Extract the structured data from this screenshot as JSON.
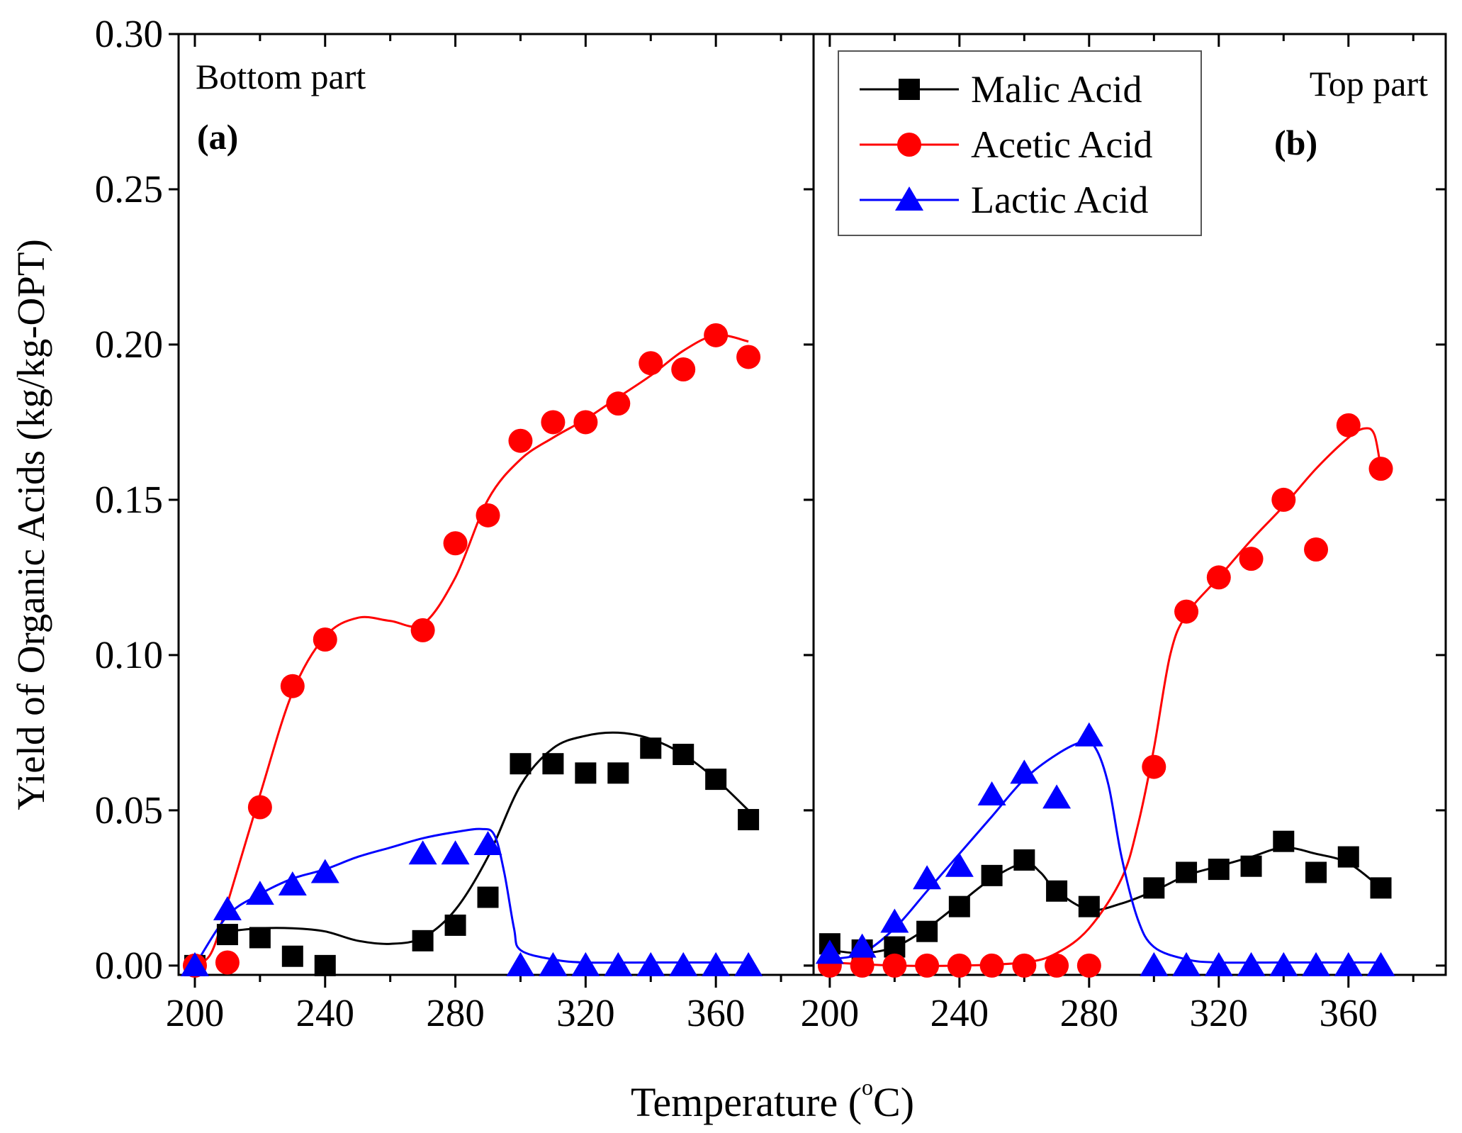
{
  "chart_data": [
    {
      "type": "scatter",
      "panel_name": "Bottom part",
      "panel_tag": "(a)",
      "xlim": [
        195,
        390
      ],
      "ylim": [
        -0.003,
        0.3
      ],
      "x_ticks": [
        "200",
        "240",
        "280",
        "320",
        "360"
      ],
      "y_ticks": [
        "0.00",
        "0.05",
        "0.10",
        "0.15",
        "0.20",
        "0.25",
        "0.30"
      ],
      "series": [
        {
          "name": "Malic Acid",
          "marker": "square",
          "color": "#000000",
          "points": [
            [
              200,
              0.0
            ],
            [
              210,
              0.01
            ],
            [
              220,
              0.009
            ],
            [
              230,
              0.003
            ],
            [
              240,
              0.0
            ],
            [
              270,
              0.008
            ],
            [
              280,
              0.013
            ],
            [
              290,
              0.022
            ],
            [
              300,
              0.065
            ],
            [
              310,
              0.065
            ],
            [
              320,
              0.062
            ],
            [
              330,
              0.062
            ],
            [
              340,
              0.07
            ],
            [
              350,
              0.068
            ],
            [
              360,
              0.06
            ],
            [
              370,
              0.047
            ]
          ],
          "fit": [
            [
              210,
              0.011
            ],
            [
              220,
              0.012
            ],
            [
              230,
              0.012
            ],
            [
              240,
              0.011
            ],
            [
              250,
              0.008
            ],
            [
              260,
              0.007
            ],
            [
              270,
              0.009
            ],
            [
              280,
              0.018
            ],
            [
              290,
              0.035
            ],
            [
              300,
              0.058
            ],
            [
              310,
              0.07
            ],
            [
              320,
              0.074
            ],
            [
              330,
              0.075
            ],
            [
              340,
              0.073
            ],
            [
              350,
              0.068
            ],
            [
              360,
              0.06
            ],
            [
              370,
              0.05
            ]
          ]
        },
        {
          "name": "Acetic Acid",
          "marker": "circle",
          "color": "#ff0000",
          "points": [
            [
              200,
              0.0
            ],
            [
              210,
              0.001
            ],
            [
              220,
              0.051
            ],
            [
              230,
              0.09
            ],
            [
              240,
              0.105
            ],
            [
              270,
              0.108
            ],
            [
              280,
              0.136
            ],
            [
              290,
              0.145
            ],
            [
              300,
              0.169
            ],
            [
              310,
              0.175
            ],
            [
              320,
              0.175
            ],
            [
              330,
              0.181
            ],
            [
              340,
              0.194
            ],
            [
              350,
              0.192
            ],
            [
              360,
              0.203
            ],
            [
              370,
              0.196
            ]
          ],
          "fit": [
            [
              200,
              0.0
            ],
            [
              205,
              0.004
            ],
            [
              210,
              0.02
            ],
            [
              220,
              0.055
            ],
            [
              230,
              0.088
            ],
            [
              240,
              0.106
            ],
            [
              250,
              0.112
            ],
            [
              260,
              0.111
            ],
            [
              270,
              0.11
            ],
            [
              280,
              0.125
            ],
            [
              290,
              0.15
            ],
            [
              300,
              0.163
            ],
            [
              310,
              0.17
            ],
            [
              320,
              0.176
            ],
            [
              330,
              0.183
            ],
            [
              340,
              0.19
            ],
            [
              350,
              0.198
            ],
            [
              360,
              0.203
            ],
            [
              370,
              0.201
            ]
          ]
        },
        {
          "name": "Lactic Acid",
          "marker": "triangle",
          "color": "#0000ff",
          "points": [
            [
              200,
              0.0
            ],
            [
              210,
              0.018
            ],
            [
              220,
              0.023
            ],
            [
              230,
              0.026
            ],
            [
              240,
              0.03
            ],
            [
              270,
              0.036
            ],
            [
              280,
              0.036
            ],
            [
              290,
              0.039
            ],
            [
              300,
              0.0
            ],
            [
              310,
              0.0
            ],
            [
              320,
              0.0
            ],
            [
              330,
              0.0
            ],
            [
              340,
              0.0
            ],
            [
              350,
              0.0
            ],
            [
              360,
              0.0
            ],
            [
              370,
              0.0
            ]
          ],
          "fit": [
            [
              200,
              0.0
            ],
            [
              210,
              0.016
            ],
            [
              220,
              0.023
            ],
            [
              230,
              0.028
            ],
            [
              240,
              0.031
            ],
            [
              250,
              0.035
            ],
            [
              260,
              0.038
            ],
            [
              270,
              0.041
            ],
            [
              280,
              0.043
            ],
            [
              288,
              0.044
            ],
            [
              292,
              0.042
            ],
            [
              295,
              0.03
            ],
            [
              298,
              0.012
            ],
            [
              300,
              0.005
            ],
            [
              310,
              0.002
            ],
            [
              320,
              0.001
            ],
            [
              340,
              0.001
            ],
            [
              370,
              0.001
            ]
          ]
        }
      ]
    },
    {
      "type": "scatter",
      "panel_name": "Top part",
      "panel_tag": "(b)",
      "xlim": [
        195,
        390
      ],
      "ylim": [
        -0.003,
        0.3
      ],
      "x_ticks": [
        "200",
        "240",
        "280",
        "320",
        "360"
      ],
      "y_ticks": [
        "0.00",
        "0.05",
        "0.10",
        "0.15",
        "0.20",
        "0.25",
        "0.30"
      ],
      "series": [
        {
          "name": "Malic Acid",
          "marker": "square",
          "color": "#000000",
          "points": [
            [
              200,
              0.007
            ],
            [
              210,
              0.005
            ],
            [
              220,
              0.006
            ],
            [
              230,
              0.011
            ],
            [
              240,
              0.019
            ],
            [
              250,
              0.029
            ],
            [
              260,
              0.034
            ],
            [
              270,
              0.024
            ],
            [
              280,
              0.019
            ],
            [
              300,
              0.025
            ],
            [
              310,
              0.03
            ],
            [
              320,
              0.031
            ],
            [
              330,
              0.032
            ],
            [
              340,
              0.04
            ],
            [
              350,
              0.03
            ],
            [
              360,
              0.035
            ],
            [
              370,
              0.025
            ]
          ],
          "fit": [
            [
              200,
              0.005
            ],
            [
              210,
              0.004
            ],
            [
              220,
              0.006
            ],
            [
              230,
              0.012
            ],
            [
              240,
              0.02
            ],
            [
              250,
              0.028
            ],
            [
              260,
              0.033
            ],
            [
              265,
              0.03
            ],
            [
              270,
              0.024
            ],
            [
              280,
              0.018
            ],
            [
              290,
              0.02
            ],
            [
              300,
              0.024
            ],
            [
              310,
              0.029
            ],
            [
              320,
              0.032
            ],
            [
              330,
              0.035
            ],
            [
              340,
              0.038
            ],
            [
              350,
              0.036
            ],
            [
              360,
              0.033
            ],
            [
              370,
              0.025
            ]
          ]
        },
        {
          "name": "Acetic Acid",
          "marker": "circle",
          "color": "#ff0000",
          "points": [
            [
              200,
              0.0
            ],
            [
              210,
              0.0
            ],
            [
              220,
              0.0
            ],
            [
              230,
              0.0
            ],
            [
              240,
              0.0
            ],
            [
              250,
              0.0
            ],
            [
              260,
              0.0
            ],
            [
              270,
              0.0
            ],
            [
              280,
              0.0
            ],
            [
              300,
              0.064
            ],
            [
              310,
              0.114
            ],
            [
              320,
              0.125
            ],
            [
              330,
              0.131
            ],
            [
              340,
              0.15
            ],
            [
              350,
              0.134
            ],
            [
              360,
              0.174
            ],
            [
              370,
              0.16
            ]
          ],
          "fit": [
            [
              200,
              0.001
            ],
            [
              220,
              0.0
            ],
            [
              240,
              0.0
            ],
            [
              260,
              0.001
            ],
            [
              270,
              0.004
            ],
            [
              280,
              0.012
            ],
            [
              290,
              0.028
            ],
            [
              295,
              0.045
            ],
            [
              300,
              0.07
            ],
            [
              305,
              0.1
            ],
            [
              310,
              0.113
            ],
            [
              320,
              0.125
            ],
            [
              330,
              0.137
            ],
            [
              340,
              0.148
            ],
            [
              350,
              0.16
            ],
            [
              360,
              0.17
            ],
            [
              365,
              0.173
            ],
            [
              368,
              0.171
            ],
            [
              370,
              0.16
            ]
          ]
        },
        {
          "name": "Lactic Acid",
          "marker": "triangle",
          "color": "#0000ff",
          "points": [
            [
              200,
              0.004
            ],
            [
              210,
              0.006
            ],
            [
              220,
              0.014
            ],
            [
              230,
              0.028
            ],
            [
              240,
              0.032
            ],
            [
              250,
              0.055
            ],
            [
              260,
              0.062
            ],
            [
              270,
              0.054
            ],
            [
              280,
              0.074
            ],
            [
              300,
              0.0
            ],
            [
              310,
              0.0
            ],
            [
              320,
              0.0
            ],
            [
              330,
              0.0
            ],
            [
              340,
              0.0
            ],
            [
              350,
              0.0
            ],
            [
              360,
              0.0
            ],
            [
              370,
              0.0
            ]
          ],
          "fit": [
            [
              200,
              0.002
            ],
            [
              210,
              0.004
            ],
            [
              220,
              0.012
            ],
            [
              230,
              0.024
            ],
            [
              240,
              0.036
            ],
            [
              250,
              0.048
            ],
            [
              260,
              0.06
            ],
            [
              270,
              0.068
            ],
            [
              278,
              0.072
            ],
            [
              282,
              0.07
            ],
            [
              286,
              0.058
            ],
            [
              290,
              0.035
            ],
            [
              295,
              0.015
            ],
            [
              300,
              0.006
            ],
            [
              310,
              0.002
            ],
            [
              320,
              0.001
            ],
            [
              340,
              0.001
            ],
            [
              370,
              0.001
            ]
          ]
        }
      ]
    }
  ],
  "y_axis_label": "Yield of Organic Acids (kg/kg-OPT)",
  "x_axis_label": "Temperature (°C)",
  "x_axis_label_prefix": "Temperature (",
  "x_axis_label_degree": "o",
  "x_axis_label_suffix": "C)",
  "legend": {
    "placement": "top-left of panel (b)",
    "entries": [
      "Malic Acid",
      "Acetic Acid",
      "Lactic Acid"
    ]
  }
}
